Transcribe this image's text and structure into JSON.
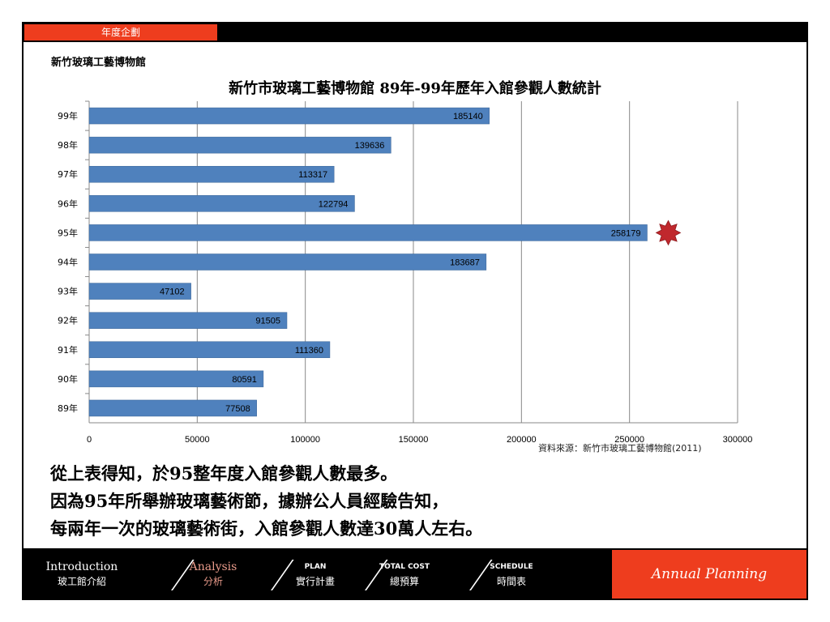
{
  "header": {
    "tab_label": "年度企劃",
    "org_name": "新竹玻璃工藝博物館"
  },
  "chart_data": {
    "type": "bar",
    "orientation": "horizontal",
    "title": "新竹市玻璃工藝博物館 89年-99年歷年入館參觀人數統計",
    "categories": [
      "99年",
      "98年",
      "97年",
      "96年",
      "95年",
      "94年",
      "93年",
      "92年",
      "91年",
      "90年",
      "89年"
    ],
    "values": [
      185140,
      139636,
      113317,
      122794,
      258179,
      183687,
      47102,
      91505,
      111360,
      80591,
      77508
    ],
    "xlim": [
      0,
      300000
    ],
    "x_ticks": [
      0,
      50000,
      100000,
      150000,
      200000,
      250000,
      300000
    ],
    "grid": true,
    "bar_color": "#4f81bd",
    "highlight_category": "95年",
    "highlight_marker_color": "#c0282d",
    "data_labels": true
  },
  "source_note": "資料來源：新竹市玻璃工藝博物館(2011)",
  "conclusion": [
    "從上表得知，於95整年度入館參觀人數最多。",
    "因為95年所舉辦玻璃藝術節，據辦公人員經驗告知，",
    "每兩年一次的玻璃藝術街，入館參觀人數達30萬人左右。"
  ],
  "nav": [
    {
      "en": "Introduction",
      "zh": "玻工館介紹",
      "active": false
    },
    {
      "en": "Analysis",
      "zh": "分析",
      "active": true
    },
    {
      "en": "PLAN",
      "zh": "實行計畫",
      "active": false
    },
    {
      "en": "TOTAL COST",
      "zh": "總預算",
      "active": false
    },
    {
      "en": "SCHEDULE",
      "zh": "時間表",
      "active": false
    }
  ],
  "brand_label": "Annual Planning",
  "colors": {
    "accent": "#ee3d1e",
    "frame": "#000000"
  }
}
